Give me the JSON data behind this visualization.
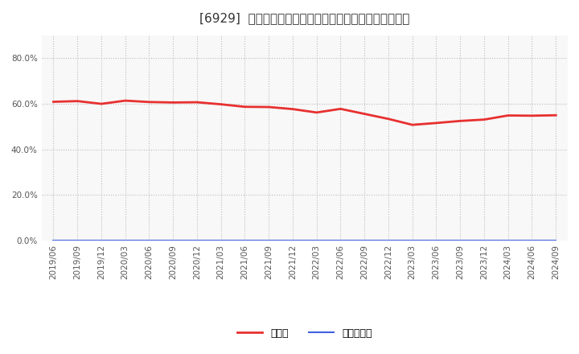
{
  "title": "[6929]  現預金、有利子負債の総資産に対する比率の推移",
  "x_labels": [
    "2019/06",
    "2019/09",
    "2019/12",
    "2020/03",
    "2020/06",
    "2020/09",
    "2020/12",
    "2021/03",
    "2021/06",
    "2021/09",
    "2021/12",
    "2022/03",
    "2022/06",
    "2022/09",
    "2022/12",
    "2023/03",
    "2023/06",
    "2023/09",
    "2023/12",
    "2024/03",
    "2024/06",
    "2024/09"
  ],
  "cash_values": [
    0.609,
    0.612,
    0.6,
    0.614,
    0.608,
    0.606,
    0.607,
    0.598,
    0.587,
    0.586,
    0.577,
    0.562,
    0.578,
    0.556,
    0.534,
    0.508,
    0.516,
    0.525,
    0.531,
    0.549,
    0.548,
    0.55
  ],
  "debt_values": [
    0.0,
    0.0,
    0.0,
    0.0,
    0.0,
    0.0,
    0.0,
    0.0,
    0.0,
    0.0,
    0.0,
    0.0,
    0.0,
    0.0,
    0.0,
    0.0,
    0.0,
    0.0,
    0.0,
    0.0,
    0.0,
    0.0
  ],
  "cash_color": "#e83030",
  "debt_color": "#4060e0",
  "ylim": [
    0.0,
    0.9
  ],
  "yticks": [
    0.0,
    0.2,
    0.4,
    0.6,
    0.8
  ],
  "legend_cash": "現預金",
  "legend_debt": "有利子負債",
  "bg_color": "#ffffff",
  "plot_bg_color": "#f8f8f8",
  "grid_color": "#bbbbbb",
  "title_fontsize": 11,
  "axis_fontsize": 7.5,
  "legend_fontsize": 9
}
